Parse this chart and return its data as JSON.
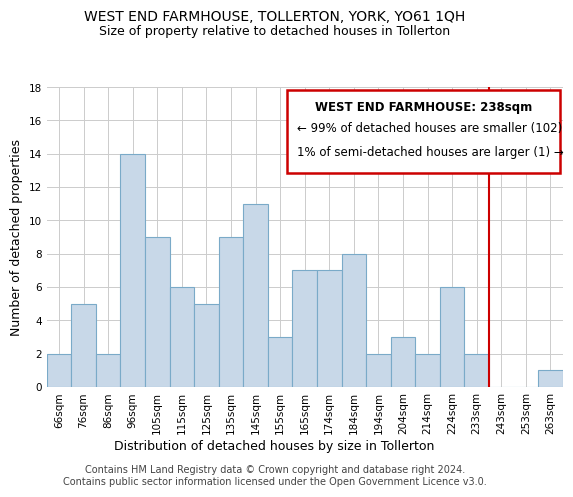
{
  "title": "WEST END FARMHOUSE, TOLLERTON, YORK, YO61 1QH",
  "subtitle": "Size of property relative to detached houses in Tollerton",
  "xlabel": "Distribution of detached houses by size in Tollerton",
  "ylabel": "Number of detached properties",
  "footer_line1": "Contains HM Land Registry data © Crown copyright and database right 2024.",
  "footer_line2": "Contains public sector information licensed under the Open Government Licence v3.0.",
  "bar_labels": [
    "66sqm",
    "76sqm",
    "86sqm",
    "96sqm",
    "105sqm",
    "115sqm",
    "125sqm",
    "135sqm",
    "145sqm",
    "155sqm",
    "165sqm",
    "174sqm",
    "184sqm",
    "194sqm",
    "204sqm",
    "214sqm",
    "224sqm",
    "233sqm",
    "243sqm",
    "253sqm",
    "263sqm"
  ],
  "bar_values": [
    2,
    5,
    2,
    14,
    9,
    6,
    5,
    9,
    11,
    3,
    7,
    7,
    8,
    2,
    3,
    2,
    6,
    2,
    0,
    0,
    1
  ],
  "bar_color": "#c8d8e8",
  "bar_edge_color": "#7aaac8",
  "ylim": [
    0,
    18
  ],
  "yticks": [
    0,
    2,
    4,
    6,
    8,
    10,
    12,
    14,
    16,
    18
  ],
  "vline_x": 17.5,
  "vline_color": "#cc0000",
  "annotation_title": "WEST END FARMHOUSE: 238sqm",
  "annotation_line1": "← 99% of detached houses are smaller (102)",
  "annotation_line2": "1% of semi-detached houses are larger (1) →",
  "annotation_box_color": "#cc0000",
  "annotation_box_fill": "#ffffff",
  "title_fontsize": 10,
  "subtitle_fontsize": 9,
  "axis_label_fontsize": 9,
  "tick_fontsize": 7.5,
  "annotation_fontsize": 8.5,
  "footer_fontsize": 7
}
